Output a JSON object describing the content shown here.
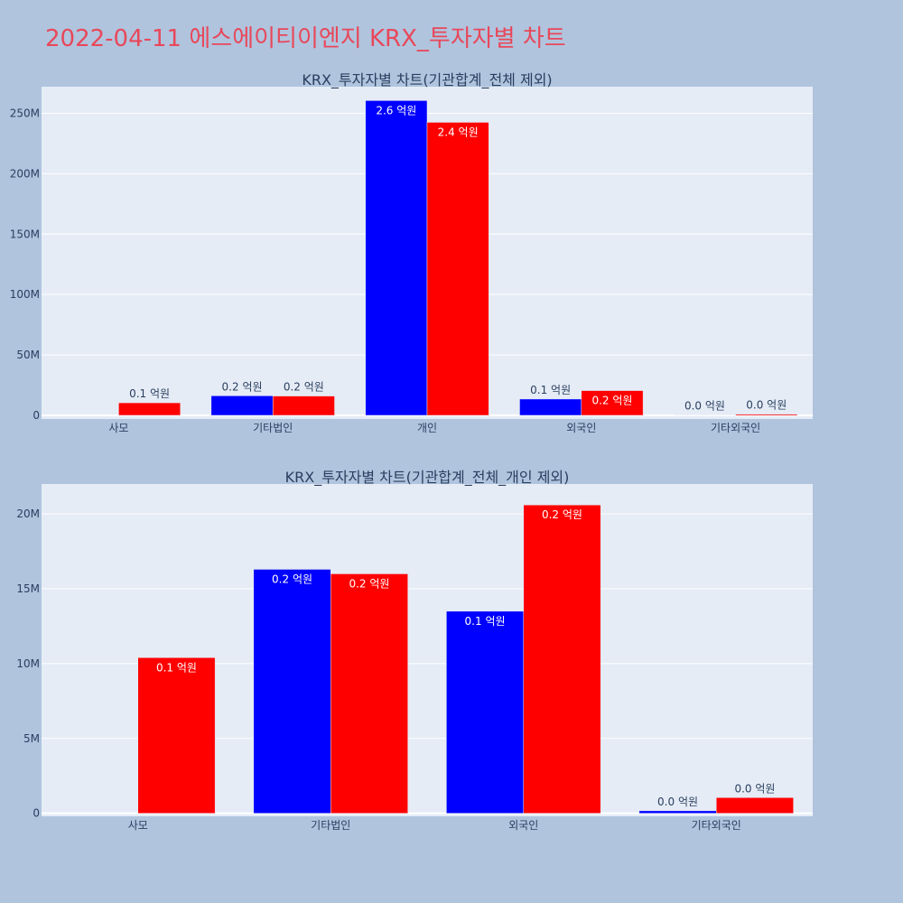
{
  "page": {
    "title": "2022-04-11 에스에이티이엔지 KRX_투자자별 차트"
  },
  "colors": {
    "buy": "#0000ff",
    "sell": "#ff0000",
    "plot_bg": "#e5ecf6",
    "page_bg": "#b0c4de",
    "title": "#e8485a",
    "axis_text": "#2a3f5f"
  },
  "chart_data": [
    {
      "type": "bar",
      "title": "KRX_투자자별 차트(기관합계_전체 제외)",
      "categories": [
        "사모",
        "기타법인",
        "개인",
        "외국인",
        "기타외국인"
      ],
      "y_ticks": [
        0,
        50000000,
        100000000,
        150000000,
        200000000,
        250000000
      ],
      "y_tick_labels": [
        "0",
        "50M",
        "100M",
        "150M",
        "200M",
        "250M"
      ],
      "ylim": [
        -3000000,
        272000000
      ],
      "grid": true,
      "series": [
        {
          "values": [
            0,
            16200000,
            260500000,
            13500000,
            200000
          ],
          "labels": [
            "",
            "0.2 억원",
            "2.6 억원",
            "0.1 억원",
            "0.0 억원"
          ]
        },
        {
          "values": [
            10400000,
            16000000,
            242500000,
            20500000,
            1000000
          ],
          "labels": [
            "0.1 억원",
            "0.2 억원",
            "2.4 억원",
            "0.2 억원",
            "0.0 억원"
          ]
        }
      ]
    },
    {
      "type": "bar",
      "title": "KRX_투자자별 차트(기관합계_전체_개인 제외)",
      "categories": [
        "사모",
        "기타법인",
        "외국인",
        "기타외국인"
      ],
      "y_ticks": [
        0,
        5000000,
        10000000,
        15000000,
        20000000
      ],
      "y_tick_labels": [
        "0",
        "5M",
        "10M",
        "15M",
        "20M"
      ],
      "ylim": [
        -200000,
        22000000
      ],
      "grid": true,
      "series": [
        {
          "values": [
            0,
            16300000,
            13500000,
            170000
          ],
          "labels": [
            "",
            "0.2 억원",
            "0.1 억원",
            "0.0 억원"
          ]
        },
        {
          "values": [
            10400000,
            16000000,
            20600000,
            1050000
          ],
          "labels": [
            "0.1 억원",
            "0.2 억원",
            "0.2 억원",
            "0.0 억원"
          ]
        }
      ]
    }
  ]
}
